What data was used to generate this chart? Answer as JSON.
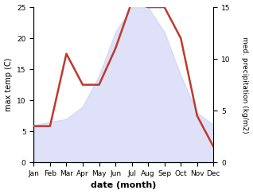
{
  "months": [
    "Jan",
    "Feb",
    "Mar",
    "Apr",
    "May",
    "Jun",
    "Jul",
    "Aug",
    "Sep",
    "Oct",
    "Nov",
    "Dec"
  ],
  "temperature": [
    6,
    6.5,
    7,
    9,
    14,
    21,
    25,
    25,
    21,
    14,
    8,
    6
  ],
  "precipitation": [
    3.5,
    3.5,
    10.5,
    7.5,
    7.5,
    11,
    15.5,
    15,
    15,
    12,
    4.5,
    1.5
  ],
  "precip_color": "#c0392b",
  "fill_color": "#c5caf5",
  "fill_alpha": 0.55,
  "ylabel_left": "max temp (C)",
  "ylabel_right": "med. precipitation (kg/m2)",
  "xlabel": "date (month)",
  "ylim_left": [
    0,
    25
  ],
  "ylim_right": [
    0,
    15
  ],
  "yticks_left": [
    0,
    5,
    10,
    15,
    20,
    25
  ],
  "yticks_right": [
    0,
    5,
    10,
    15
  ],
  "background_color": "#ffffff",
  "title_fontsize": 7,
  "axis_fontsize": 7,
  "tick_fontsize": 6.5,
  "line_width": 1.8
}
